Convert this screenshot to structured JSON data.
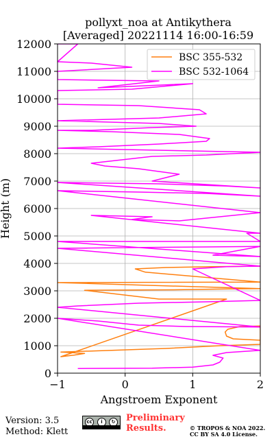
{
  "chart_data": {
    "type": "line",
    "title_line1": "pollyxt_noa at Antikythera",
    "title_line2": "[Averaged] 20221114 16:00-16:59",
    "xlabel": "Angstroem Exponent",
    "ylabel": "Height (m)",
    "xlim": [
      -1,
      2
    ],
    "ylim": [
      0,
      12000
    ],
    "xticks": [
      -1,
      0,
      1,
      2
    ],
    "yticks": [
      0,
      1000,
      2000,
      3000,
      4000,
      5000,
      6000,
      7000,
      8000,
      9000,
      10000,
      11000,
      12000
    ],
    "grid": true,
    "legend_position": "top-right",
    "series": [
      {
        "name": "BSC 355-532",
        "color": "#ff7f0e",
        "points": [
          [
            2.0,
            1200
          ],
          [
            1.6,
            1250
          ],
          [
            1.5,
            1350
          ],
          [
            1.48,
            1500
          ],
          [
            1.52,
            1600
          ],
          [
            1.7,
            1700
          ],
          [
            2.0,
            1720
          ],
          [
            2.0,
            1050
          ],
          [
            1.4,
            1000
          ],
          [
            0.6,
            900
          ],
          [
            -0.2,
            830
          ],
          [
            -0.7,
            790
          ],
          [
            -0.95,
            770
          ],
          [
            -0.6,
            720
          ],
          [
            -0.75,
            660
          ],
          [
            -0.95,
            600
          ],
          [
            1.5,
            2700
          ],
          [
            0.5,
            2700
          ],
          [
            -0.6,
            3020
          ],
          [
            0.8,
            3040
          ],
          [
            1.5,
            3070
          ],
          [
            2.0,
            3080
          ],
          [
            -1.0,
            3300
          ],
          [
            2.0,
            3320
          ],
          [
            0.3,
            3680
          ],
          [
            0.15,
            3800
          ],
          [
            0.6,
            3850
          ],
          [
            1.3,
            3880
          ],
          [
            2.0,
            3900
          ]
        ]
      },
      {
        "name": "BSC 532-1064",
        "color": "#ff00ff",
        "points": [
          [
            -0.7,
            170
          ],
          [
            0.4,
            180
          ],
          [
            1.0,
            220
          ],
          [
            1.3,
            300
          ],
          [
            1.4,
            400
          ],
          [
            1.45,
            550
          ],
          [
            1.3,
            650
          ],
          [
            1.5,
            750
          ],
          [
            2.0,
            830
          ],
          [
            -1.0,
            2000
          ],
          [
            -0.4,
            1900
          ],
          [
            0.2,
            1750
          ],
          [
            0.9,
            1700
          ],
          [
            2.0,
            1680
          ],
          [
            -1.0,
            2400
          ],
          [
            -0.7,
            2450
          ],
          [
            0.2,
            2550
          ],
          [
            1.2,
            2600
          ],
          [
            2.0,
            2650
          ],
          [
            1.0,
            3800
          ],
          [
            1.5,
            3880
          ],
          [
            2.0,
            3900
          ],
          [
            -1.0,
            4550
          ],
          [
            0.3,
            4580
          ],
          [
            1.2,
            4600
          ],
          [
            2.0,
            4620
          ],
          [
            1.3,
            4300
          ],
          [
            2.0,
            4250
          ],
          [
            -1.0,
            4800
          ],
          [
            2.0,
            4800
          ],
          [
            1.8,
            5100
          ],
          [
            2.0,
            5100
          ],
          [
            -0.5,
            5750
          ],
          [
            0.4,
            5700
          ],
          [
            0.1,
            5600
          ],
          [
            0.8,
            5550
          ],
          [
            2.0,
            5850
          ],
          [
            -1.0,
            6650
          ],
          [
            0.2,
            6600
          ],
          [
            1.2,
            6550
          ],
          [
            2.0,
            6450
          ],
          [
            -1.0,
            6950
          ],
          [
            0.5,
            6900
          ],
          [
            1.5,
            6820
          ],
          [
            2.0,
            6750
          ],
          [
            0.4,
            7000
          ],
          [
            0.8,
            7250
          ],
          [
            0.2,
            7450
          ],
          [
            -0.3,
            7550
          ],
          [
            -0.5,
            7650
          ],
          [
            0.4,
            7900
          ],
          [
            1.2,
            7950
          ],
          [
            2.0,
            8050
          ],
          [
            -1.0,
            8200
          ],
          [
            -0.4,
            8250
          ],
          [
            0.5,
            8350
          ],
          [
            1.2,
            8450
          ],
          [
            1.25,
            8550
          ],
          [
            0.8,
            8700
          ],
          [
            -0.2,
            8800
          ],
          [
            -1.0,
            8850
          ],
          [
            -0.5,
            8850
          ],
          [
            0.4,
            8950
          ],
          [
            1.05,
            9000
          ],
          [
            0.5,
            9100
          ],
          [
            -1.0,
            9200
          ],
          [
            0.5,
            9300
          ],
          [
            1.2,
            9450
          ],
          [
            1.1,
            9600
          ],
          [
            0.2,
            9750
          ],
          [
            -1.0,
            9800
          ],
          [
            -1.0,
            10300
          ],
          [
            0.1,
            10350
          ],
          [
            1.0,
            10550
          ],
          [
            -0.4,
            10400
          ],
          [
            0.5,
            10650
          ],
          [
            -1.0,
            10700
          ],
          [
            -1.0,
            11000
          ],
          [
            0.1,
            11150
          ],
          [
            -0.5,
            11300
          ],
          [
            -1.0,
            11350
          ],
          [
            -0.7,
            12000
          ],
          [
            -1.0,
            12000
          ]
        ]
      }
    ]
  },
  "footer": {
    "version": "Version: 3.5",
    "method": "Method: Klett",
    "preliminary_line1": "Preliminary",
    "preliminary_line2": "Results.",
    "copyright_line1": "© TROPOS & NOA 2022.",
    "copyright_line2": "CC BY SA 4.0 License."
  }
}
